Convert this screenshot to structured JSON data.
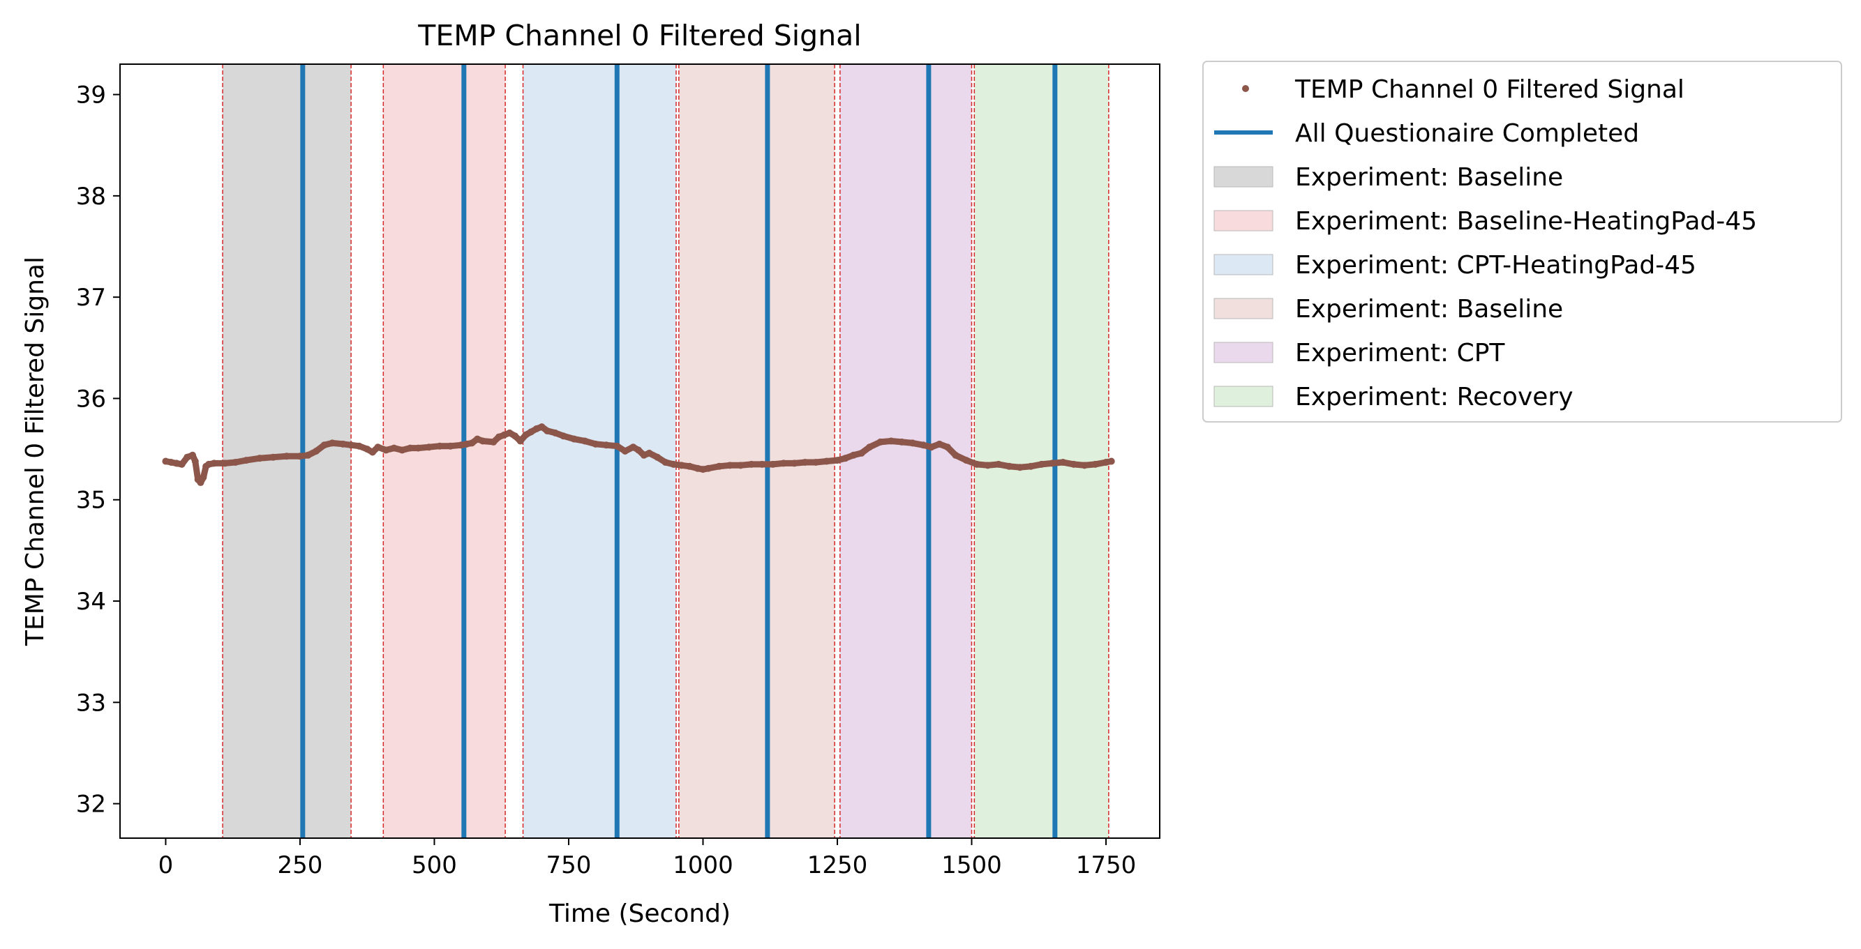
{
  "chart_data": {
    "type": "line",
    "title": "TEMP Channel 0 Filtered Signal",
    "xlabel": "Time (Second)",
    "ylabel": "TEMP Channel 0 Filtered Signal",
    "xlim": [
      -85,
      1850
    ],
    "ylim": [
      31.66,
      39.3
    ],
    "xticks": [
      0,
      250,
      500,
      750,
      1000,
      1250,
      1500,
      1750
    ],
    "xtick_labels": [
      "0",
      "250",
      "500",
      "750",
      "1000",
      "1250",
      "1500",
      "1750"
    ],
    "yticks": [
      32,
      33,
      34,
      35,
      36,
      37,
      38,
      39
    ],
    "ytick_labels": [
      "32",
      "33",
      "34",
      "35",
      "36",
      "37",
      "38",
      "39"
    ],
    "grid": false,
    "legend_position": "outside-right",
    "series": [
      {
        "name": "TEMP Channel 0 Filtered Signal",
        "style": "dots",
        "color": "#8c564b",
        "x": [
          0,
          10,
          20,
          30,
          40,
          50,
          55,
          60,
          65,
          70,
          75,
          80,
          90,
          110,
          130,
          150,
          175,
          200,
          225,
          250,
          265,
          280,
          295,
          310,
          330,
          345,
          360,
          375,
          385,
          395,
          410,
          425,
          440,
          455,
          470,
          490,
          510,
          530,
          550,
          560,
          570,
          580,
          590,
          610,
          620,
          630,
          640,
          650,
          660,
          670,
          680,
          690,
          700,
          710,
          725,
          740,
          760,
          780,
          800,
          820,
          840,
          855,
          870,
          880,
          890,
          900,
          915,
          930,
          945,
          960,
          975,
          990,
          1000,
          1010,
          1030,
          1050,
          1070,
          1090,
          1110,
          1130,
          1150,
          1170,
          1190,
          1210,
          1230,
          1250,
          1265,
          1280,
          1295,
          1310,
          1330,
          1350,
          1370,
          1390,
          1410,
          1425,
          1440,
          1455,
          1470,
          1490,
          1510,
          1530,
          1550,
          1570,
          1590,
          1610,
          1630,
          1650,
          1670,
          1690,
          1710,
          1730,
          1750,
          1760
        ],
        "y": [
          35.38,
          35.37,
          35.36,
          35.35,
          35.42,
          35.44,
          35.38,
          35.2,
          35.17,
          35.22,
          35.33,
          35.35,
          35.36,
          35.36,
          35.37,
          35.39,
          35.41,
          35.42,
          35.43,
          35.43,
          35.44,
          35.48,
          35.54,
          35.56,
          35.55,
          35.54,
          35.53,
          35.5,
          35.47,
          35.52,
          35.49,
          35.51,
          35.49,
          35.51,
          35.51,
          35.52,
          35.53,
          35.53,
          35.54,
          35.55,
          35.56,
          35.6,
          35.58,
          35.57,
          35.62,
          35.64,
          35.66,
          35.63,
          35.58,
          35.64,
          35.67,
          35.7,
          35.72,
          35.68,
          35.66,
          35.63,
          35.6,
          35.58,
          35.55,
          35.54,
          35.53,
          35.48,
          35.52,
          35.49,
          35.44,
          35.46,
          35.42,
          35.37,
          35.35,
          35.34,
          35.33,
          35.31,
          35.3,
          35.31,
          35.33,
          35.34,
          35.34,
          35.35,
          35.35,
          35.35,
          35.36,
          35.36,
          35.37,
          35.37,
          35.38,
          35.39,
          35.41,
          35.44,
          35.46,
          35.52,
          35.57,
          35.58,
          35.57,
          35.56,
          35.54,
          35.52,
          35.55,
          35.52,
          35.44,
          35.39,
          35.35,
          35.34,
          35.35,
          35.33,
          35.32,
          35.33,
          35.35,
          35.36,
          35.37,
          35.35,
          35.34,
          35.35,
          35.37,
          35.38
        ]
      },
      {
        "name": "All Questionaire Completed",
        "style": "vlines",
        "color": "#1f77b4",
        "x": [
          255,
          555,
          840,
          1120,
          1420,
          1655
        ]
      }
    ],
    "regions": [
      {
        "name": "Experiment: Baseline",
        "x0": 106,
        "x1": 345,
        "color": "#d8d8d8"
      },
      {
        "name": "Experiment: Baseline-HeatingPad-45",
        "x0": 405,
        "x1": 632,
        "color": "#f8dcdd"
      },
      {
        "name": "Experiment: CPT-HeatingPad-45",
        "x0": 665,
        "x1": 950,
        "color": "#dce8f3"
      },
      {
        "name": "Experiment: Baseline",
        "x0": 955,
        "x1": 1245,
        "color": "#f0dfdd"
      },
      {
        "name": "Experiment: CPT",
        "x0": 1255,
        "x1": 1500,
        "color": "#ead9ec"
      },
      {
        "name": "Experiment: Recovery",
        "x0": 1505,
        "x1": 1755,
        "color": "#dff0dc"
      }
    ],
    "boundary_lines": {
      "color": "#d62728",
      "x": [
        106,
        345,
        405,
        632,
        665,
        950,
        955,
        1245,
        1255,
        1500,
        1505,
        1755
      ]
    }
  },
  "legend": {
    "items": [
      {
        "label": "TEMP Channel 0 Filtered Signal",
        "kind": "dot",
        "color": "#8c564b"
      },
      {
        "label": "All Questionaire Completed",
        "kind": "line",
        "color": "#1f77b4"
      },
      {
        "label": "Experiment: Baseline",
        "kind": "patch",
        "color": "#d8d8d8"
      },
      {
        "label": "Experiment: Baseline-HeatingPad-45",
        "kind": "patch",
        "color": "#f8dcdd"
      },
      {
        "label": "Experiment: CPT-HeatingPad-45",
        "kind": "patch",
        "color": "#dce8f3"
      },
      {
        "label": "Experiment: Baseline",
        "kind": "patch",
        "color": "#f0dfdd"
      },
      {
        "label": "Experiment: CPT",
        "kind": "patch",
        "color": "#ead9ec"
      },
      {
        "label": "Experiment: Recovery",
        "kind": "patch",
        "color": "#dff0dc"
      }
    ]
  }
}
